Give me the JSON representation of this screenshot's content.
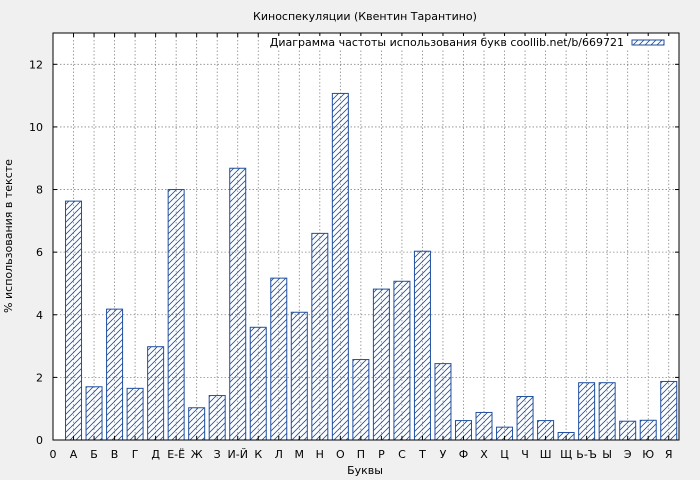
{
  "chart_data": {
    "type": "bar",
    "title": "Киноспекуляции (Квентин Тарантино)",
    "xlabel": "Буквы",
    "ylabel": "% использования в тексте",
    "ylim": [
      0,
      13
    ],
    "yticks": [
      0,
      2,
      4,
      6,
      8,
      10,
      12
    ],
    "grid": true,
    "legend_position": "top-right",
    "x_origin_label": "0",
    "categories": [
      "А",
      "Б",
      "В",
      "Г",
      "Д",
      "Е-Ё",
      "Ж",
      "З",
      "И-Й",
      "К",
      "Л",
      "М",
      "Н",
      "О",
      "П",
      "Р",
      "С",
      "Т",
      "У",
      "Ф",
      "Х",
      "Ц",
      "Ч",
      "Ш",
      "Щ",
      "Ь-Ъ",
      "Ы",
      "Э",
      "Ю",
      "Я"
    ],
    "series": [
      {
        "name": "Диаграмма частоты использования букв coollib.net/b/669721",
        "color": "#1f4fa0",
        "values": [
          7.63,
          1.7,
          4.18,
          1.65,
          2.98,
          8.0,
          1.03,
          1.42,
          8.68,
          3.6,
          5.17,
          4.08,
          6.6,
          11.07,
          2.57,
          4.82,
          5.07,
          6.03,
          2.44,
          0.62,
          0.88,
          0.41,
          1.39,
          0.62,
          0.24,
          1.83,
          1.83,
          0.6,
          0.63,
          1.87
        ]
      }
    ]
  }
}
